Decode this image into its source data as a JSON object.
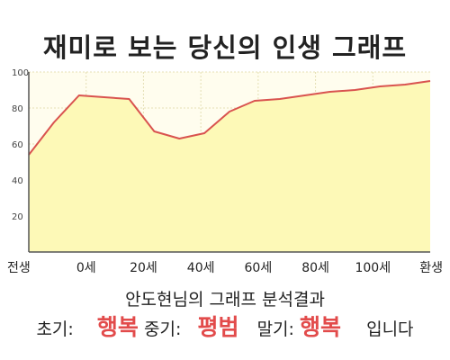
{
  "title": "재미로 보는 당신의 인생 그래프",
  "summary": "안도현님의 그래프 분석결과",
  "result": {
    "early_label": "초기:",
    "early_value": "행복",
    "mid_label": "중기:",
    "mid_value": "평범",
    "late_label": "말기:",
    "late_value": "행복",
    "suffix": "입니다"
  },
  "colors": {
    "line": "#d9534f",
    "fill": "#fdf9b7",
    "plot_bg": "#fffdee",
    "grid": "#e4dfb4",
    "highlight": "#e24b4b"
  },
  "chart_data": {
    "type": "area",
    "title": "",
    "xlabel": "",
    "ylabel": "",
    "x_labels": [
      "전생",
      "0세",
      "20세",
      "40세",
      "60세",
      "80세",
      "100세",
      "환생"
    ],
    "y_ticks": [
      20,
      40,
      60,
      80,
      100
    ],
    "ylim": [
      0,
      100
    ],
    "grid": true,
    "series": [
      {
        "x": [
          "전생",
          "",
          "0세",
          "",
          "20세",
          "",
          "",
          "40세",
          "",
          "60세",
          "",
          "",
          "80세",
          "",
          "100세",
          "",
          "환생"
        ],
        "values": [
          54,
          72,
          87,
          86,
          85,
          67,
          63,
          66,
          78,
          84,
          85,
          87,
          89,
          90,
          92,
          93,
          95
        ]
      }
    ]
  }
}
